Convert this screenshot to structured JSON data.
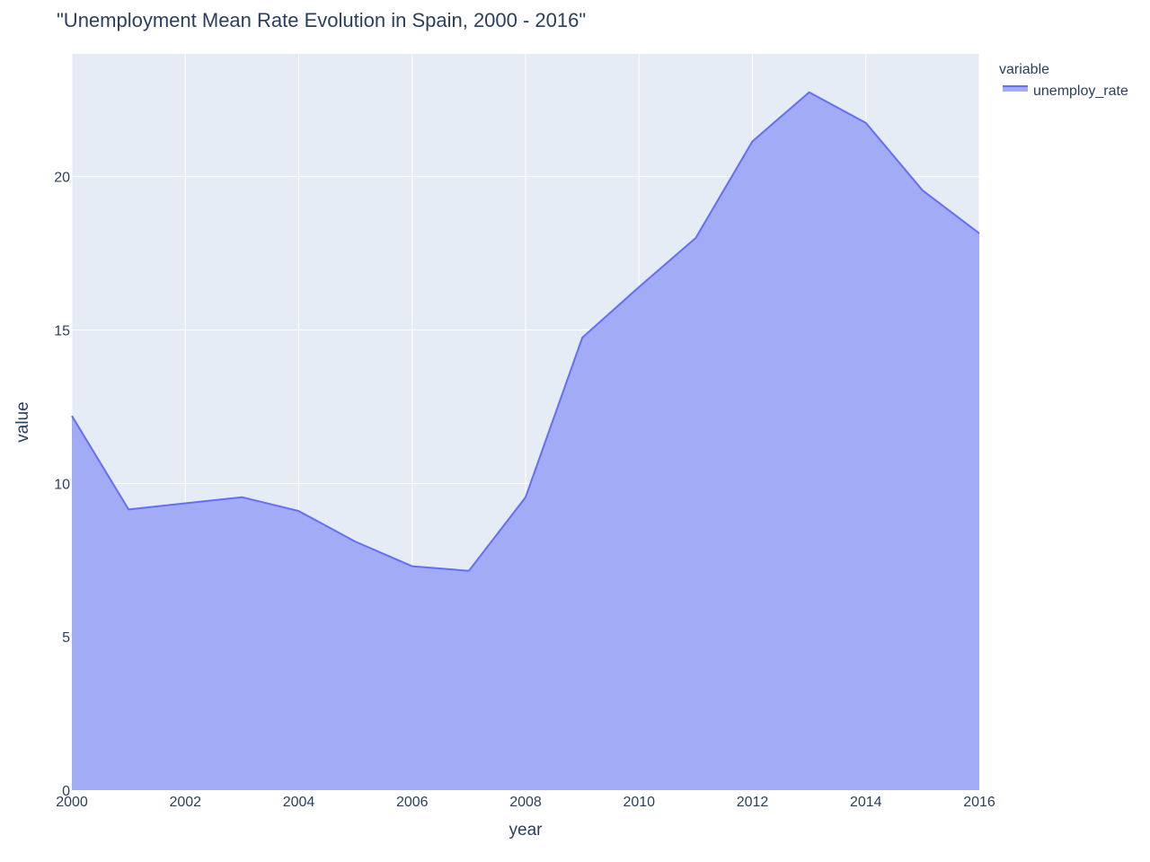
{
  "chart_data": {
    "type": "area",
    "title": "\"Unemployment Mean Rate Evolution in Spain, 2000 - 2016\"",
    "xlabel": "year",
    "ylabel": "value",
    "x": [
      2000,
      2001,
      2002,
      2003,
      2004,
      2005,
      2006,
      2007,
      2008,
      2009,
      2010,
      2011,
      2012,
      2013,
      2014,
      2015,
      2016
    ],
    "series": [
      {
        "name": "unemploy_rate",
        "values": [
          12.2,
          9.15,
          9.35,
          9.55,
          9.1,
          8.1,
          7.3,
          7.15,
          9.55,
          14.75,
          16.4,
          18.0,
          21.15,
          22.75,
          21.75,
          19.55,
          18.15
        ],
        "line_color": "#636efa",
        "fill_color": "#a2abf6"
      }
    ],
    "xlim": [
      2000,
      2016
    ],
    "ylim": [
      0,
      24
    ],
    "x_ticks": [
      2000,
      2002,
      2004,
      2006,
      2008,
      2010,
      2012,
      2014,
      2016
    ],
    "y_ticks": [
      0,
      5,
      10,
      15,
      20
    ],
    "grid": true,
    "plot_bgcolor": "#e5ecf6",
    "legend": {
      "title": "variable",
      "position": "top-right"
    }
  }
}
